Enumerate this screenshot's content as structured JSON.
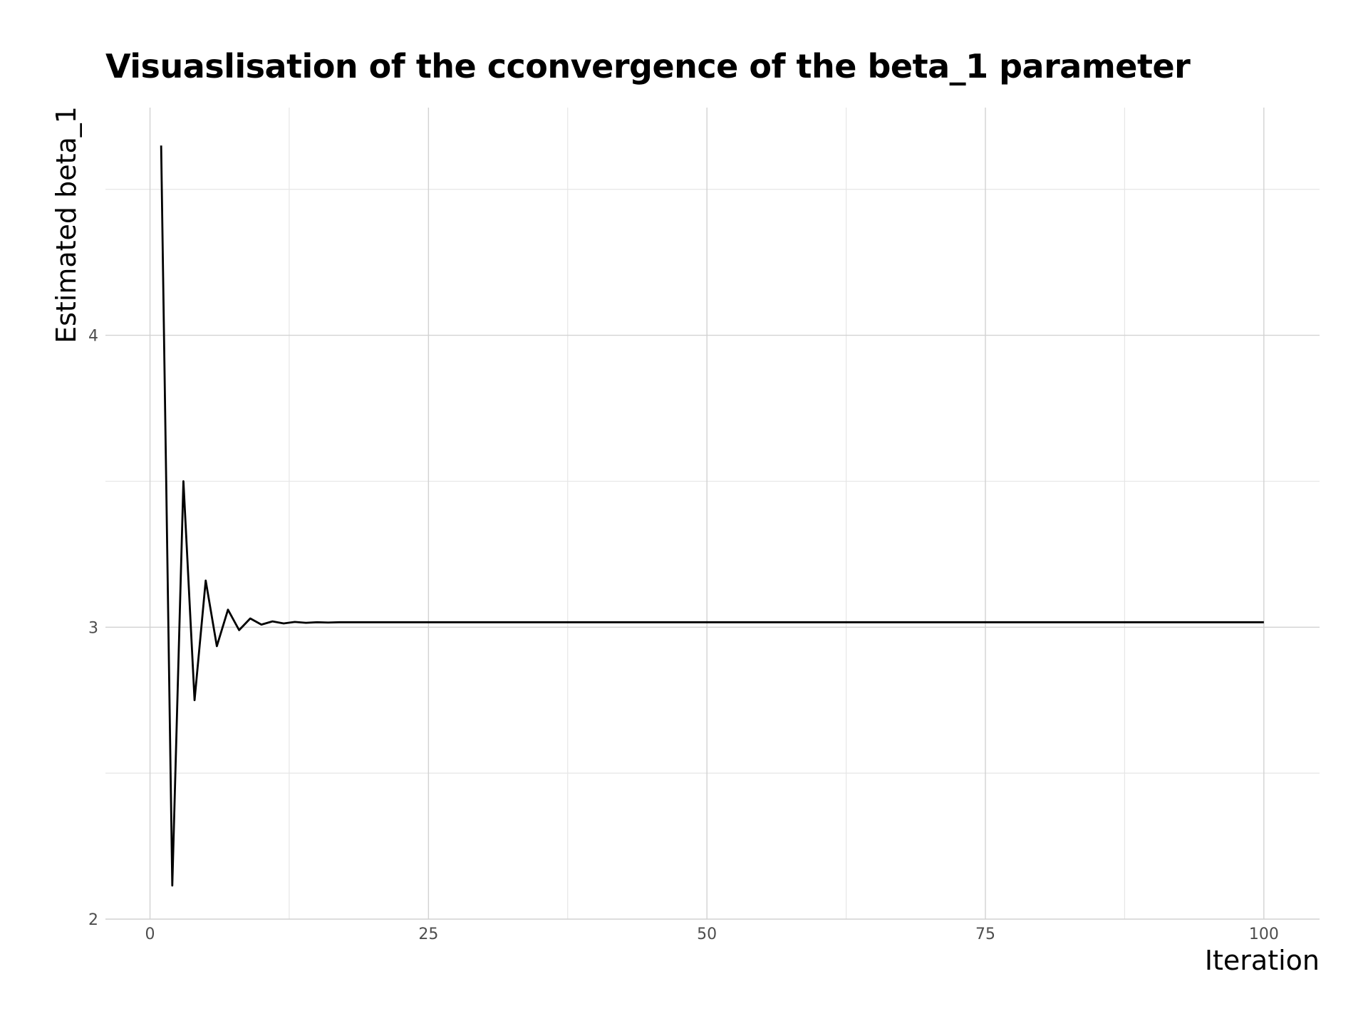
{
  "chart_data": {
    "type": "line",
    "title": "Visuaslisation of the cconvergence of the beta_1 parameter",
    "xlabel": "Iteration",
    "ylabel": "Estimated beta_1",
    "xlim": [
      -4,
      105
    ],
    "ylim": [
      2.0,
      4.78
    ],
    "x_ticks": [
      0,
      25,
      50,
      75,
      100
    ],
    "x_tick_labels": [
      "0",
      "25",
      "50",
      "75",
      "100"
    ],
    "y_ticks": [
      2,
      3,
      4
    ],
    "y_tick_labels": [
      "2",
      "3",
      "4"
    ],
    "x_minor_ticks": [
      12.5,
      37.5,
      62.5,
      87.5
    ],
    "y_minor_ticks": [
      2.5,
      3.5,
      4.5
    ],
    "grid": true,
    "legend": "none",
    "line_color": "#000000",
    "x": [
      1,
      2,
      3,
      4,
      5,
      6,
      7,
      8,
      9,
      10,
      11,
      12,
      13,
      14,
      15,
      16,
      17,
      100
    ],
    "y": [
      4.65,
      2.115,
      3.5,
      2.75,
      3.16,
      2.935,
      3.06,
      2.99,
      3.03,
      3.009,
      3.02,
      3.013,
      3.018,
      3.015,
      3.017,
      3.016,
      3.017,
      3.017
    ]
  }
}
